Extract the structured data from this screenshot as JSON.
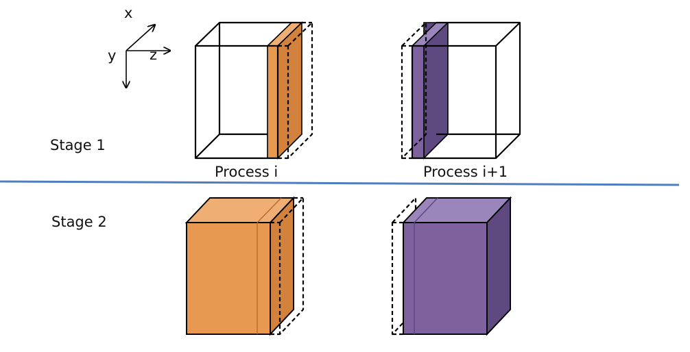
{
  "axes": {
    "x": "x",
    "y": "y",
    "z": "z"
  },
  "stage1": {
    "label": "Stage 1"
  },
  "stage2": {
    "label": "Stage 2"
  },
  "processes": [
    {
      "label": "Process i",
      "color": "#E8994F"
    },
    {
      "label": "Process i+1",
      "color": "#7D629E"
    }
  ],
  "colors": {
    "separator": "#4F7EC0",
    "orange_light": "#EFAE74",
    "orange": "#E8994F",
    "orange_dark": "#D2823C",
    "purple_light": "#9A86BA",
    "purple": "#7D629E",
    "purple_dark": "#5E4A80"
  }
}
